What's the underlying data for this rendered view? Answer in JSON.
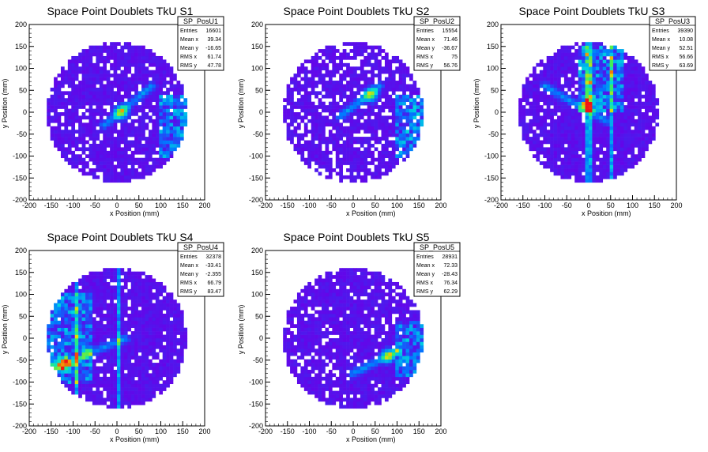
{
  "chart_data": [
    {
      "type": "heatmap",
      "title": "Space Point Doublets TkU S1",
      "xlabel": "x Position (mm)",
      "ylabel": "y Position (mm)",
      "xlim": [
        -200,
        200
      ],
      "ylim": [
        -200,
        200
      ],
      "xticks": [
        -200,
        -150,
        -100,
        -50,
        0,
        50,
        100,
        150,
        200
      ],
      "yticks": [
        -200,
        -150,
        -100,
        -50,
        0,
        50,
        100,
        150,
        200
      ],
      "stats": {
        "name": "SP_PosU1",
        "rows": [
          {
            "label": "Entries",
            "value": "16601"
          },
          {
            "label": "Mean x",
            "value": "39.34"
          },
          {
            "label": "Mean y",
            "value": "-16.65"
          },
          {
            "label": "RMS x",
            "value": "61.74"
          },
          {
            "label": "RMS y",
            "value": "47.78"
          }
        ]
      },
      "features": {
        "circle_radius_mm": 160,
        "diagonal_band": {
          "from": [
            -30,
            -30
          ],
          "to": [
            80,
            60
          ],
          "peak": [
            10,
            0
          ]
        },
        "edge_cluster": {
          "x_from": 100,
          "x_to": 160,
          "y_from": -100,
          "y_to": 40
        },
        "vertical_lines": [],
        "sparsity": 0.12
      }
    },
    {
      "type": "heatmap",
      "title": "Space Point Doublets TkU S2",
      "xlabel": "x Position (mm)",
      "ylabel": "y Position (mm)",
      "xlim": [
        -200,
        200
      ],
      "ylim": [
        -200,
        200
      ],
      "xticks": [
        -200,
        -150,
        -100,
        -50,
        0,
        50,
        100,
        150,
        200
      ],
      "yticks": [
        -200,
        -150,
        -100,
        -50,
        0,
        50,
        100,
        150,
        200
      ],
      "stats": {
        "name": "SP_PosU2",
        "rows": [
          {
            "label": "Entries",
            "value": "15554"
          },
          {
            "label": "Mean x",
            "value": "71.46"
          },
          {
            "label": "Mean y",
            "value": "-36.67"
          },
          {
            "label": "RMS x",
            "value": "75"
          },
          {
            "label": "RMS y",
            "value": "56.76"
          }
        ]
      },
      "features": {
        "circle_radius_mm": 160,
        "diagonal_band": {
          "from": [
            -30,
            -10
          ],
          "to": [
            60,
            60
          ],
          "peak": [
            40,
            40
          ]
        },
        "edge_cluster": {
          "x_from": 100,
          "x_to": 160,
          "y_from": -100,
          "y_to": 40
        },
        "vertical_lines": [],
        "sparsity": 0.22
      }
    },
    {
      "type": "heatmap",
      "title": "Space Point Doublets TkU S3",
      "xlabel": "x Position (mm)",
      "ylabel": "y Position (mm)",
      "xlim": [
        -200,
        200
      ],
      "ylim": [
        -200,
        200
      ],
      "xticks": [
        -200,
        -150,
        -100,
        -50,
        0,
        50,
        100,
        150,
        200
      ],
      "yticks": [
        -200,
        -150,
        -100,
        -50,
        0,
        50,
        100,
        150,
        200
      ],
      "stats": {
        "name": "SP_PosU3",
        "rows": [
          {
            "label": "Entries",
            "value": "39390"
          },
          {
            "label": "Mean x",
            "value": "10.08"
          },
          {
            "label": "Mean y",
            "value": "52.51"
          },
          {
            "label": "RMS x",
            "value": "56.66"
          },
          {
            "label": "RMS y",
            "value": "63.69"
          }
        ]
      },
      "features": {
        "circle_radius_mm": 160,
        "diagonal_band": {
          "from": [
            -100,
            60
          ],
          "to": [
            40,
            -20
          ],
          "peak": [
            0,
            20
          ]
        },
        "edge_cluster": {
          "x_from": -20,
          "x_to": 80,
          "y_from": 0,
          "y_to": 150
        },
        "vertical_lines": [
          0,
          50
        ],
        "sparsity": 0.1
      }
    },
    {
      "type": "heatmap",
      "title": "Space Point Doublets TkU S4",
      "xlabel": "x Position (mm)",
      "ylabel": "y Position (mm)",
      "xlim": [
        -200,
        200
      ],
      "ylim": [
        -200,
        200
      ],
      "xticks": [
        -200,
        -150,
        -100,
        -50,
        0,
        50,
        100,
        150,
        200
      ],
      "yticks": [
        -200,
        -150,
        -100,
        -50,
        0,
        50,
        100,
        150,
        200
      ],
      "stats": {
        "name": "SP_PosU4",
        "rows": [
          {
            "label": "Entries",
            "value": "32378"
          },
          {
            "label": "Mean x",
            "value": "-33.41"
          },
          {
            "label": "Mean y",
            "value": "-2.355"
          },
          {
            "label": "RMS x",
            "value": "66.79"
          },
          {
            "label": "RMS y",
            "value": "83.47"
          }
        ]
      },
      "features": {
        "circle_radius_mm": 160,
        "diagonal_band": {
          "from": [
            -150,
            -70
          ],
          "to": [
            20,
            0
          ],
          "peak": [
            -120,
            -60
          ]
        },
        "edge_cluster": {
          "x_from": -160,
          "x_to": -60,
          "y_from": -100,
          "y_to": 100
        },
        "vertical_lines": [
          -90,
          5
        ],
        "sparsity": 0.08
      }
    },
    {
      "type": "heatmap",
      "title": "Space Point Doublets TkU S5",
      "xlabel": "x Position (mm)",
      "ylabel": "y Position (mm)",
      "xlim": [
        -200,
        200
      ],
      "ylim": [
        -200,
        200
      ],
      "xticks": [
        -200,
        -150,
        -100,
        -50,
        0,
        50,
        100,
        150,
        200
      ],
      "yticks": [
        -200,
        -150,
        -100,
        -50,
        0,
        50,
        100,
        150,
        200
      ],
      "stats": {
        "name": "SP_PosU5",
        "rows": [
          {
            "label": "Entries",
            "value": "28931"
          },
          {
            "label": "Mean x",
            "value": "72.33"
          },
          {
            "label": "Mean y",
            "value": "-28.43"
          },
          {
            "label": "RMS x",
            "value": "76.34"
          },
          {
            "label": "RMS y",
            "value": "62.29"
          }
        ]
      },
      "features": {
        "circle_radius_mm": 160,
        "diagonal_band": {
          "from": [
            0,
            -80
          ],
          "to": [
            100,
            -30
          ],
          "peak": [
            80,
            -40
          ]
        },
        "edge_cluster": {
          "x_from": 100,
          "x_to": 160,
          "y_from": -90,
          "y_to": 40
        },
        "vertical_lines": [],
        "sparsity": 0.12
      }
    }
  ]
}
